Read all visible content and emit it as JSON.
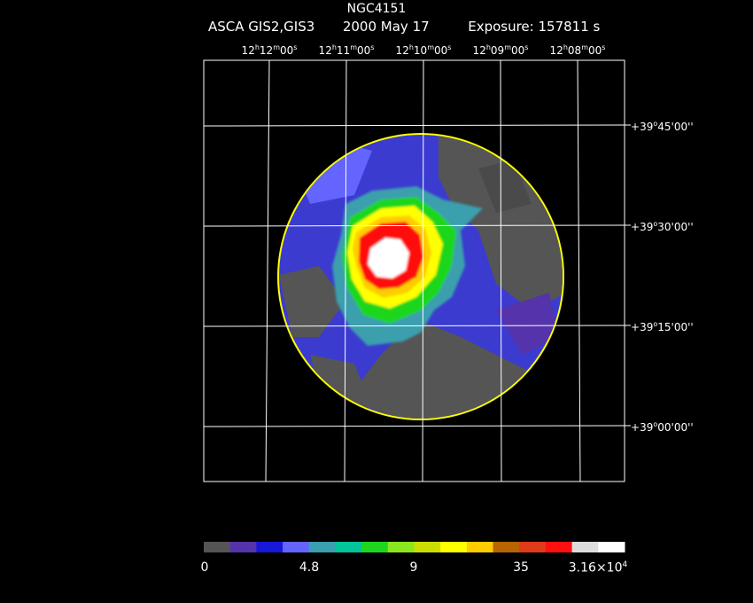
{
  "header": {
    "object": "NGC4151",
    "instrument": "ASCA GIS2,GIS3",
    "date": "2000 May 17",
    "exposure_label": "Exposure: 157811 s"
  },
  "ra_labels": [
    {
      "h": "12",
      "m": "12",
      "s": "00"
    },
    {
      "h": "12",
      "m": "11",
      "s": "00"
    },
    {
      "h": "12",
      "m": "10",
      "s": "00"
    },
    {
      "h": "12",
      "m": "09",
      "s": "00"
    },
    {
      "h": "12",
      "m": "08",
      "s": "00"
    }
  ],
  "dec_labels": [
    {
      "sign": "+",
      "d": "39",
      "m": "45",
      "s": "00"
    },
    {
      "sign": "+",
      "d": "39",
      "m": "30",
      "s": "00"
    },
    {
      "sign": "+",
      "d": "39",
      "m": "15",
      "s": "00"
    },
    {
      "sign": "+",
      "d": "39",
      "m": "00",
      "s": "00"
    }
  ],
  "colorbar": {
    "colors": [
      "#555555",
      "#5533aa",
      "#1818d8",
      "#6464ff",
      "#3a9fae",
      "#00c49a",
      "#1fd61f",
      "#8ae61e",
      "#ccdd00",
      "#ffff00",
      "#ffcc00",
      "#b86400",
      "#e03a1a",
      "#ff1010",
      "#dddddd",
      "#ffffff"
    ],
    "labels": [
      {
        "text": "0"
      },
      {
        "text": "4.8"
      },
      {
        "text": "9"
      },
      {
        "text": "35"
      },
      {
        "text": "3.16×10",
        "exp": "4"
      }
    ]
  }
}
